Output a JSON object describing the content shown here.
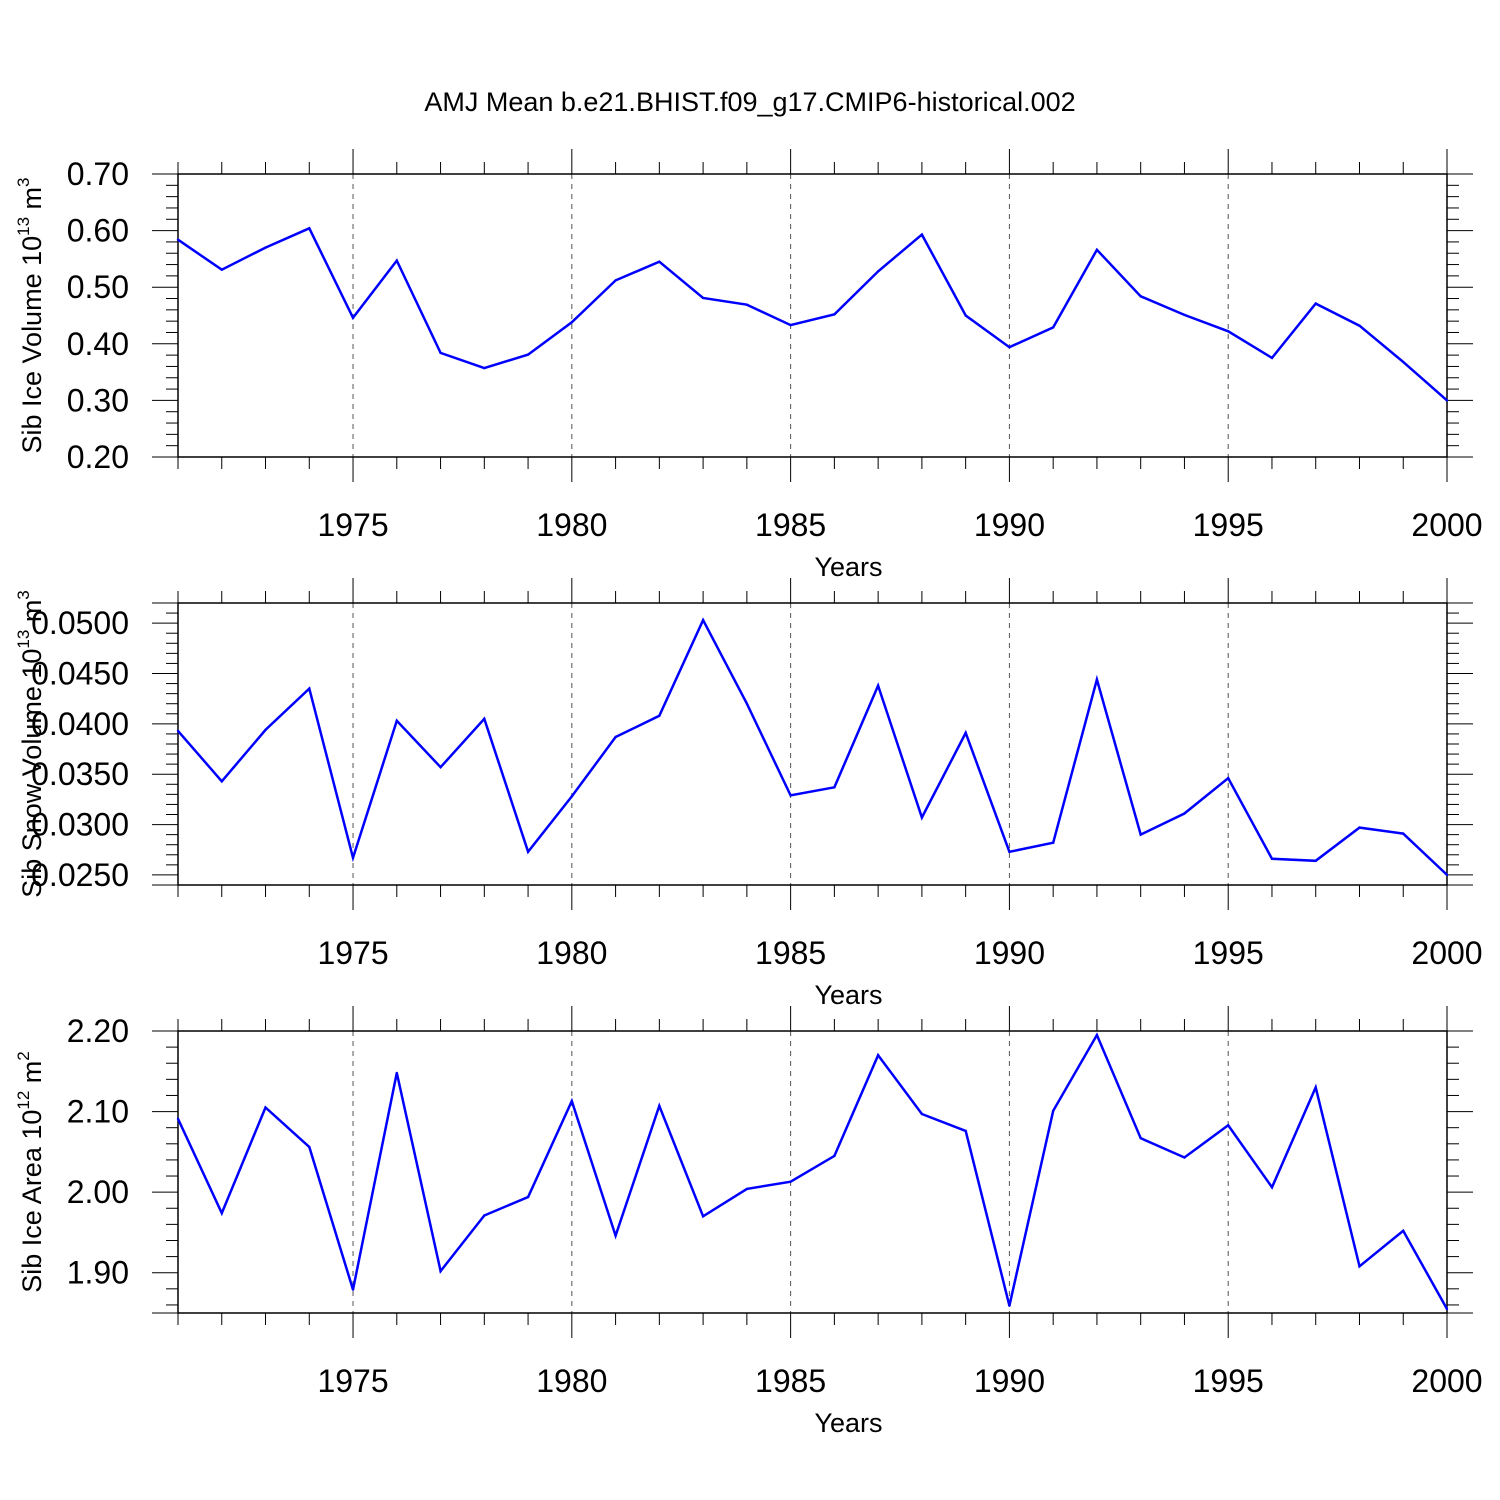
{
  "title": "AMJ Mean b.e21.BHIST.f09_g17.CMIP6-historical.002",
  "colors": {
    "line": "#0000ff",
    "axis": "#000000",
    "grid": "#555555"
  },
  "chart_data": [
    {
      "type": "line",
      "ylabel_main": "Sib Ice Volume 10",
      "ylabel_exp1": "13",
      "ylabel_mid": " m",
      "ylabel_exp2": "3",
      "xlabel": "Years",
      "xlim": [
        1971,
        2000
      ],
      "ylim": [
        0.2,
        0.7
      ],
      "yticks": [
        0.2,
        0.3,
        0.4,
        0.5,
        0.6,
        0.7
      ],
      "ytick_labels": [
        "0.20",
        "0.30",
        "0.40",
        "0.50",
        "0.60",
        "0.70"
      ],
      "xticks": [
        1975,
        1980,
        1985,
        1990,
        1995,
        2000
      ],
      "xtick_labels": [
        "1975",
        "1980",
        "1985",
        "1990",
        "1995",
        "2000"
      ],
      "grid": "vertical dashed at major x ticks",
      "x": [
        1971,
        1972,
        1973,
        1974,
        1975,
        1976,
        1977,
        1978,
        1979,
        1980,
        1981,
        1982,
        1983,
        1984,
        1985,
        1986,
        1987,
        1988,
        1989,
        1990,
        1991,
        1992,
        1993,
        1994,
        1995,
        1996,
        1997,
        1998,
        1999,
        2000
      ],
      "values": [
        0.584,
        0.531,
        0.57,
        0.604,
        0.446,
        0.547,
        0.384,
        0.357,
        0.381,
        0.438,
        0.512,
        0.545,
        0.481,
        0.469,
        0.433,
        0.452,
        0.528,
        0.593,
        0.45,
        0.394,
        0.429,
        0.566,
        0.484,
        0.451,
        0.422,
        0.375,
        0.471,
        0.432,
        0.368,
        0.3
      ]
    },
    {
      "type": "line",
      "ylabel_main": "Sib Snow Volume 10",
      "ylabel_exp1": "13",
      "ylabel_mid": " m",
      "ylabel_exp2": "3",
      "xlabel": "Years",
      "xlim": [
        1971,
        2000
      ],
      "ylim": [
        0.024,
        0.052
      ],
      "yticks": [
        0.025,
        0.03,
        0.035,
        0.04,
        0.045,
        0.05
      ],
      "ytick_labels": [
        "0.0250",
        "0.0300",
        "0.0350",
        "0.0400",
        "0.0450",
        "0.0500"
      ],
      "xticks": [
        1975,
        1980,
        1985,
        1990,
        1995,
        2000
      ],
      "xtick_labels": [
        "1975",
        "1980",
        "1985",
        "1990",
        "1995",
        "2000"
      ],
      "grid": "vertical dashed at major x ticks",
      "x": [
        1971,
        1972,
        1973,
        1974,
        1975,
        1976,
        1977,
        1978,
        1979,
        1980,
        1981,
        1982,
        1983,
        1984,
        1985,
        1986,
        1987,
        1988,
        1989,
        1990,
        1991,
        1992,
        1993,
        1994,
        1995,
        1996,
        1997,
        1998,
        1999,
        2000
      ],
      "values": [
        0.0393,
        0.0343,
        0.0394,
        0.0435,
        0.0267,
        0.0403,
        0.0357,
        0.0405,
        0.0273,
        0.0328,
        0.0387,
        0.0408,
        0.0503,
        0.042,
        0.0329,
        0.0337,
        0.0438,
        0.0307,
        0.0391,
        0.0273,
        0.0282,
        0.0444,
        0.029,
        0.0311,
        0.0346,
        0.0266,
        0.0264,
        0.0297,
        0.0291,
        0.025
      ]
    },
    {
      "type": "line",
      "ylabel_main": "Sib Ice Area 10",
      "ylabel_exp1": "12",
      "ylabel_mid": " m",
      "ylabel_exp2": "2",
      "xlabel": "Years",
      "xlim": [
        1971,
        2000
      ],
      "ylim": [
        1.85,
        2.2
      ],
      "yticks": [
        1.9,
        2.0,
        2.1,
        2.2
      ],
      "ytick_labels": [
        "1.90",
        "2.00",
        "2.10",
        "2.20"
      ],
      "xticks": [
        1975,
        1980,
        1985,
        1990,
        1995,
        2000
      ],
      "xtick_labels": [
        "1975",
        "1980",
        "1985",
        "1990",
        "1995",
        "2000"
      ],
      "grid": "vertical dashed at major x ticks",
      "x": [
        1971,
        1972,
        1973,
        1974,
        1975,
        1976,
        1977,
        1978,
        1979,
        1980,
        1981,
        1982,
        1983,
        1984,
        1985,
        1986,
        1987,
        1988,
        1989,
        1990,
        1991,
        1992,
        1993,
        1994,
        1995,
        1996,
        1997,
        1998,
        1999,
        2000
      ],
      "values": [
        2.091,
        1.974,
        2.105,
        2.056,
        1.879,
        2.148,
        1.902,
        1.971,
        1.994,
        2.113,
        1.946,
        2.107,
        1.97,
        2.004,
        2.013,
        2.045,
        2.17,
        2.097,
        2.076,
        1.859,
        2.101,
        2.195,
        2.067,
        2.043,
        2.083,
        2.006,
        2.13,
        1.908,
        1.952,
        1.855
      ]
    }
  ]
}
